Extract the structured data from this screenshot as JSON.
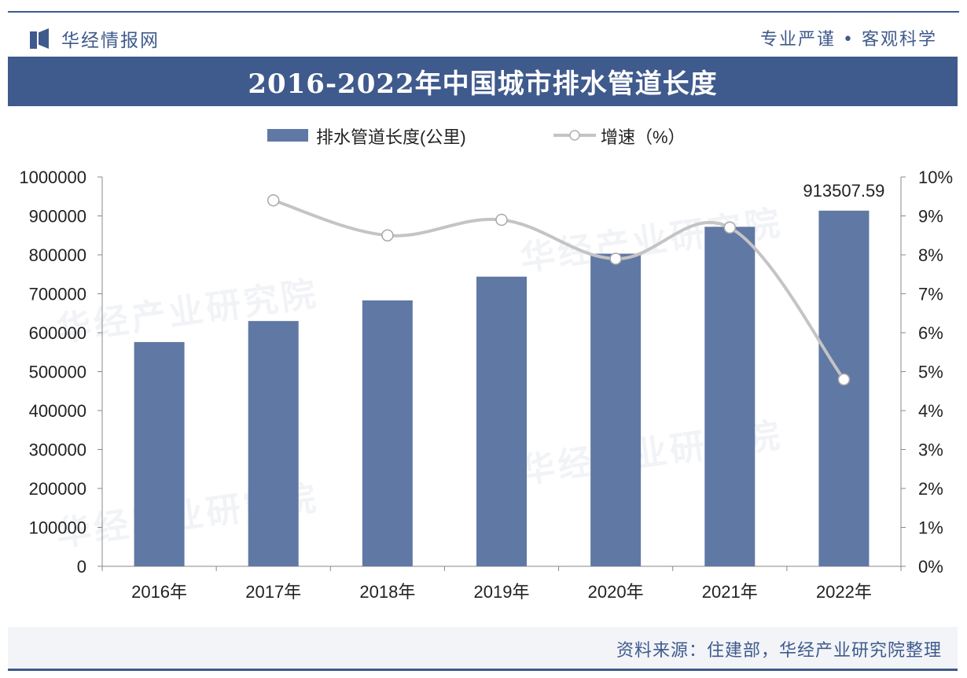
{
  "header": {
    "logo_text": "华经情报网",
    "slogan": "专业严谨 • 客观科学"
  },
  "footer": {
    "source": "资料来源：住建部，华经产业研究院整理"
  },
  "watermark": {
    "text": "华经产业研究院"
  },
  "colors": {
    "brand": "#3f5a8c",
    "bar": "#6078a4",
    "line": "#c4c4c4"
  },
  "chart_data": {
    "type": "bar+line",
    "title": "2016-2022年中国城市排水管道长度",
    "categories": [
      "2016年",
      "2017年",
      "2018年",
      "2019年",
      "2020年",
      "2021年",
      "2022年"
    ],
    "series": [
      {
        "name": "排水管道长度(公里)",
        "type": "bar",
        "axis": "left",
        "values": [
          576000,
          630000,
          683000,
          744000,
          803000,
          872000,
          913507.59
        ]
      },
      {
        "name": "增速（%）",
        "type": "line",
        "axis": "right",
        "values": [
          null,
          9.4,
          8.5,
          8.9,
          7.9,
          8.7,
          4.8
        ]
      }
    ],
    "annotations": [
      {
        "category": "2022年",
        "text": "913507.59"
      }
    ],
    "ylim_left": [
      0,
      1000000
    ],
    "ylim_right": [
      0,
      10
    ],
    "yticks_left": [
      "0",
      "100000",
      "200000",
      "300000",
      "400000",
      "500000",
      "600000",
      "700000",
      "800000",
      "900000",
      "1000000"
    ],
    "yticks_right": [
      "0%",
      "1%",
      "2%",
      "3%",
      "4%",
      "5%",
      "6%",
      "7%",
      "8%",
      "9%",
      "10%"
    ],
    "legend_position": "top-center",
    "grid": false
  }
}
